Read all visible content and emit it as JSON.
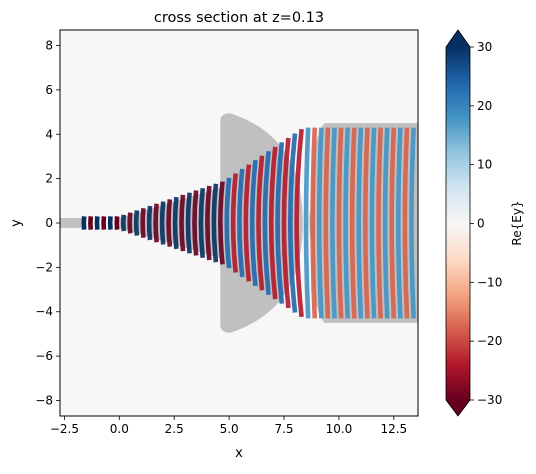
{
  "chart_data": {
    "type": "heatmap",
    "title": "cross section at z=0.13",
    "xlabel": "x",
    "ylabel": "y",
    "xlim": [
      -2.7,
      13.6
    ],
    "ylim": [
      -8.7,
      8.7
    ],
    "xticks": [
      -2.5,
      0.0,
      2.5,
      5.0,
      7.5,
      10.0,
      12.5
    ],
    "xtick_labels": [
      "−2.5",
      "0.0",
      "2.5",
      "5.0",
      "7.5",
      "10.0",
      "12.5"
    ],
    "yticks": [
      8,
      6,
      4,
      2,
      0,
      -2,
      -4,
      -6,
      -8
    ],
    "ytick_labels": [
      "8",
      "6",
      "4",
      "2",
      "0",
      "−2",
      "−4",
      "−6",
      "−8"
    ],
    "colorbar": {
      "label": "Re{Ey}",
      "colormap": "RdBu",
      "range": [
        -30,
        30
      ],
      "ticks": [
        30,
        20,
        10,
        0,
        -10,
        -20,
        -30
      ],
      "tick_labels": [
        "30",
        "20",
        "10",
        "0",
        "−10",
        "−20",
        "−30"
      ],
      "extend": "both"
    },
    "structures": [
      {
        "name": "input waveguide",
        "x": [
          -2.7,
          -1.6
        ],
        "half_width": 0.22
      },
      {
        "name": "taper",
        "x": [
          0.0,
          4.8
        ],
        "half_width_start": 0.22,
        "half_width_end": 1.65
      },
      {
        "name": "lens",
        "x": [
          4.6,
          8.4
        ],
        "half_height": 4.95
      },
      {
        "name": "output slab",
        "x": [
          8.6,
          13.6
        ],
        "half_height": 4.5
      }
    ],
    "field": {
      "wavelength": 0.6,
      "peak_amplitude": 30
    }
  },
  "colors": {
    "structure": "#c0c0c0",
    "background": "#f7f7f7",
    "positive": "#053061",
    "negative": "#67001f"
  }
}
